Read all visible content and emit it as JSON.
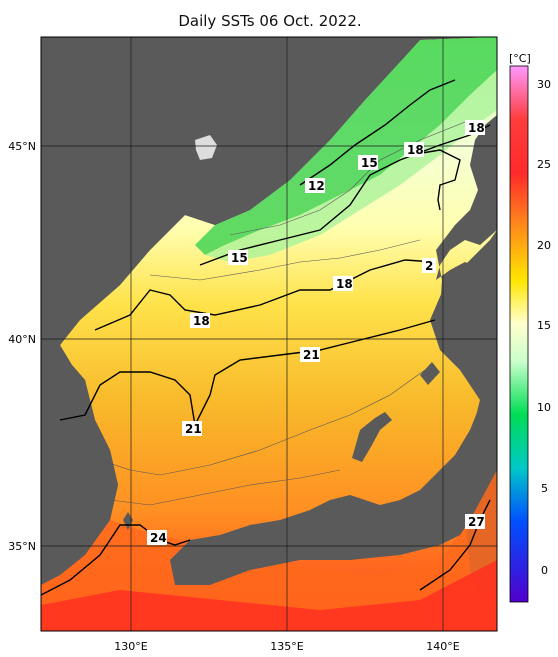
{
  "title": "Daily SSTs 06 Oct. 2022.",
  "lon_labels": [
    "130°E",
    "135°E",
    "140°E"
  ],
  "lat_labels": [
    "45°N",
    "40°N",
    "35°N"
  ],
  "colorbar": {
    "unit": "[°C]",
    "ticks": [
      "30",
      "25",
      "20",
      "15",
      "10",
      "5",
      "0"
    ],
    "stops": [
      "#ff99ff",
      "#ff2a2a",
      "#ff8c1a",
      "#ffe600",
      "#ffffcc",
      "#ccffcc",
      "#00dd55",
      "#00c8c8",
      "#0050ff",
      "#5000cc"
    ]
  },
  "isotherm_labels": [
    "18",
    "15",
    "18",
    "12",
    "15",
    "2",
    "18",
    "18",
    "21",
    "21",
    "24",
    "27"
  ],
  "colors": {
    "land": "#5a5a5a",
    "grid": "#1a1a1a",
    "contour": "#000000"
  }
}
